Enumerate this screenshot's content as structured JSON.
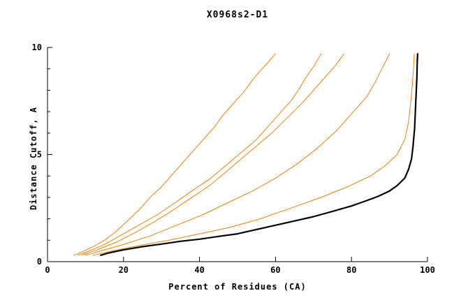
{
  "chart_data": {
    "type": "line",
    "title": "X0968s2-D1",
    "xlabel": "Percent of Residues (CA)",
    "ylabel": "Distance Cutoff, A",
    "xlim": [
      0,
      100
    ],
    "ylim": [
      0,
      10
    ],
    "x_ticks": [
      0,
      20,
      40,
      60,
      80,
      100
    ],
    "x_tick_labels": [
      "0",
      "20",
      "40",
      "60",
      "80",
      "100"
    ],
    "y_ticks": [
      0,
      5,
      10
    ],
    "y_tick_labels": [
      "0",
      "5",
      "10"
    ],
    "y_minor_ticks": [
      1,
      2,
      3,
      4,
      6,
      7,
      8,
      9
    ],
    "grid": false,
    "legend_position": "none",
    "colors": {
      "axis": "#000000",
      "highlight_series": "#000000",
      "model_series": "#e8820c"
    },
    "series": [
      {
        "name": "model-orange-1",
        "color": "#e8820c",
        "width": 1,
        "points": [
          [
            7,
            0.3
          ],
          [
            9,
            0.45
          ],
          [
            12,
            0.7
          ],
          [
            15,
            1.0
          ],
          [
            18,
            1.4
          ],
          [
            21,
            1.9
          ],
          [
            24,
            2.4
          ],
          [
            27,
            3.0
          ],
          [
            30,
            3.5
          ],
          [
            33,
            4.1
          ],
          [
            36,
            4.7
          ],
          [
            38,
            5.1
          ],
          [
            41,
            5.7
          ],
          [
            44,
            6.3
          ],
          [
            46,
            6.8
          ],
          [
            48,
            7.2
          ],
          [
            50,
            7.6
          ],
          [
            52,
            8.0
          ],
          [
            54,
            8.5
          ],
          [
            56,
            8.9
          ],
          [
            58,
            9.3
          ],
          [
            60,
            9.7
          ]
        ]
      },
      {
        "name": "model-orange-2",
        "color": "#e8820c",
        "width": 1,
        "points": [
          [
            8,
            0.3
          ],
          [
            11,
            0.5
          ],
          [
            15,
            0.8
          ],
          [
            19,
            1.2
          ],
          [
            24,
            1.7
          ],
          [
            29,
            2.2
          ],
          [
            34,
            2.8
          ],
          [
            38,
            3.3
          ],
          [
            43,
            3.9
          ],
          [
            47,
            4.5
          ],
          [
            51,
            5.1
          ],
          [
            55,
            5.7
          ],
          [
            58,
            6.3
          ],
          [
            61,
            6.9
          ],
          [
            64,
            7.5
          ],
          [
            66,
            8.0
          ],
          [
            68,
            8.6
          ],
          [
            70,
            9.1
          ],
          [
            72,
            9.7
          ]
        ]
      },
      {
        "name": "model-orange-3",
        "color": "#e8820c",
        "width": 1,
        "points": [
          [
            9,
            0.3
          ],
          [
            13,
            0.55
          ],
          [
            18,
            0.9
          ],
          [
            23,
            1.35
          ],
          [
            28,
            1.85
          ],
          [
            33,
            2.4
          ],
          [
            38,
            3.0
          ],
          [
            43,
            3.6
          ],
          [
            47,
            4.2
          ],
          [
            51,
            4.8
          ],
          [
            55,
            5.4
          ],
          [
            59,
            6.0
          ],
          [
            63,
            6.7
          ],
          [
            67,
            7.4
          ],
          [
            70,
            8.0
          ],
          [
            73,
            8.6
          ],
          [
            76,
            9.2
          ],
          [
            78,
            9.7
          ]
        ]
      },
      {
        "name": "model-orange-4",
        "color": "#e8820c",
        "width": 1,
        "points": [
          [
            10,
            0.3
          ],
          [
            14,
            0.5
          ],
          [
            20,
            0.8
          ],
          [
            27,
            1.2
          ],
          [
            34,
            1.7
          ],
          [
            41,
            2.2
          ],
          [
            48,
            2.8
          ],
          [
            54,
            3.3
          ],
          [
            60,
            3.9
          ],
          [
            66,
            4.6
          ],
          [
            71,
            5.3
          ],
          [
            76,
            6.1
          ],
          [
            80,
            6.9
          ],
          [
            84,
            7.7
          ],
          [
            86,
            8.3
          ],
          [
            88,
            9.0
          ],
          [
            90,
            9.7
          ]
        ]
      },
      {
        "name": "model-orange-5",
        "color": "#e8820c",
        "width": 1,
        "points": [
          [
            12,
            0.3
          ],
          [
            17,
            0.5
          ],
          [
            24,
            0.75
          ],
          [
            32,
            1.0
          ],
          [
            40,
            1.3
          ],
          [
            48,
            1.6
          ],
          [
            56,
            2.0
          ],
          [
            64,
            2.5
          ],
          [
            72,
            3.0
          ],
          [
            79,
            3.5
          ],
          [
            85,
            4.0
          ],
          [
            89,
            4.5
          ],
          [
            92,
            5.0
          ],
          [
            94,
            5.7
          ],
          [
            95,
            6.5
          ],
          [
            95.5,
            7.3
          ],
          [
            96,
            8.2
          ],
          [
            96.3,
            9.0
          ],
          [
            96.5,
            9.7
          ]
        ]
      },
      {
        "name": "model-black-best",
        "color": "#000000",
        "width": 2.2,
        "points": [
          [
            14,
            0.3
          ],
          [
            16,
            0.4
          ],
          [
            20,
            0.55
          ],
          [
            25,
            0.7
          ],
          [
            30,
            0.82
          ],
          [
            35,
            0.95
          ],
          [
            40,
            1.05
          ],
          [
            45,
            1.18
          ],
          [
            50,
            1.3
          ],
          [
            55,
            1.5
          ],
          [
            60,
            1.7
          ],
          [
            65,
            1.9
          ],
          [
            70,
            2.1
          ],
          [
            75,
            2.35
          ],
          [
            80,
            2.6
          ],
          [
            84,
            2.85
          ],
          [
            87,
            3.05
          ],
          [
            90,
            3.3
          ],
          [
            92,
            3.55
          ],
          [
            94,
            3.9
          ],
          [
            95,
            4.3
          ],
          [
            95.8,
            4.8
          ],
          [
            96.2,
            5.4
          ],
          [
            96.6,
            6.2
          ],
          [
            96.8,
            7.0
          ],
          [
            97,
            7.8
          ],
          [
            97.2,
            8.6
          ],
          [
            97.3,
            9.3
          ],
          [
            97.4,
            9.7
          ]
        ]
      }
    ]
  }
}
